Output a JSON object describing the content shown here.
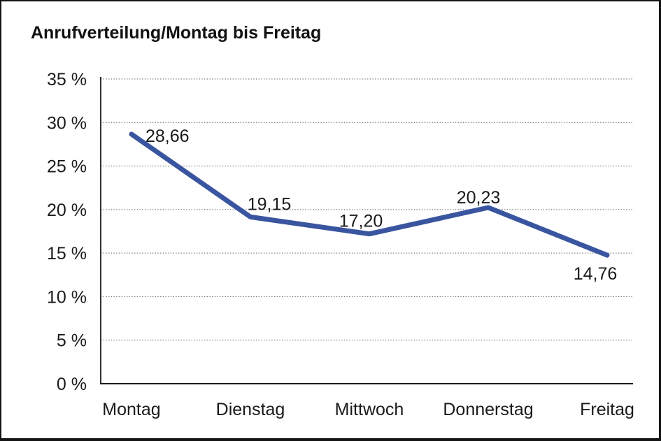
{
  "chart_data": {
    "type": "line",
    "title": "Anrufverteilung/Montag bis Freitag",
    "categories": [
      "Montag",
      "Dienstag",
      "Mittwoch",
      "Donnerstag",
      "Freitag"
    ],
    "values": [
      28.66,
      19.15,
      17.2,
      20.23,
      14.76
    ],
    "value_labels": [
      "28,66",
      "19,15",
      "17,20",
      "20,23",
      "14,76"
    ],
    "xlabel": "",
    "ylabel": "",
    "ylim": [
      0,
      35
    ],
    "ytick_step": 5,
    "ytick_labels": [
      "0 %",
      "5 %",
      "10 %",
      "15 %",
      "20 %",
      "25 %",
      "30 %",
      "35 %"
    ],
    "grid": "horizontal-dotted",
    "legend": "none",
    "line_color": "#3A55A0",
    "axis_color": "#1a1a1a",
    "gridline_color": "#555555",
    "text_color": "#1a1a1a"
  }
}
